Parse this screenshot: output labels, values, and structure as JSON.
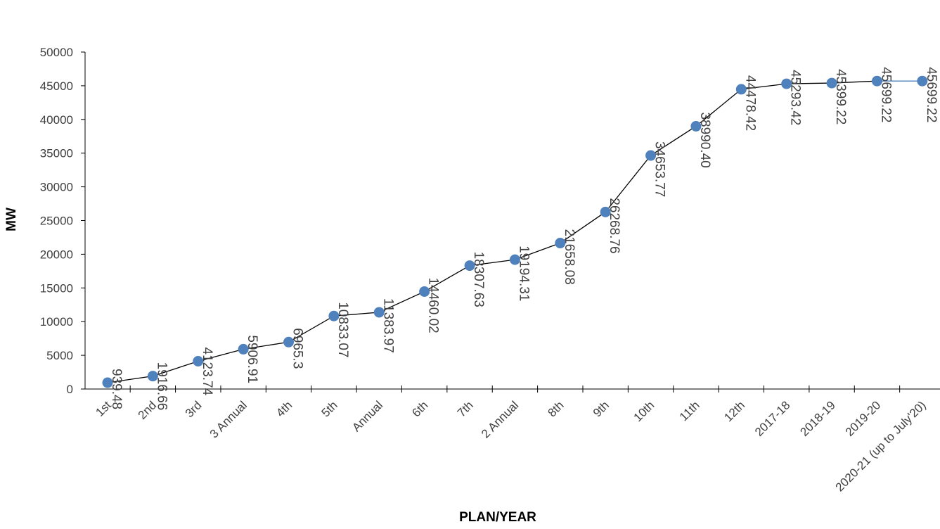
{
  "colors": {
    "marker": "#4f81bd",
    "line": "#000000",
    "last_segment": "#4f81bd",
    "axis": "#000000",
    "text": "#404040"
  },
  "chart_data": {
    "type": "line",
    "title": "",
    "xlabel": "PLAN/YEAR",
    "ylabel": "MW",
    "ylim": [
      0,
      50000
    ],
    "yticks": [
      0,
      5000,
      10000,
      15000,
      20000,
      25000,
      30000,
      35000,
      40000,
      45000,
      50000
    ],
    "grid": false,
    "legend": "none",
    "categories": [
      "1st",
      "2nd",
      "3rd",
      "3 Annual",
      "4th",
      "5th",
      "Annual",
      "6th",
      "7th",
      "2 Annual",
      "8th",
      "9th",
      "10th",
      "11th",
      "12th",
      "2017-18",
      "2018-19",
      "2019-20",
      "2020-21 (up to July'20)"
    ],
    "values": [
      939.48,
      1916.66,
      4123.74,
      5906.91,
      6965.3,
      10833.07,
      11383.97,
      14460.02,
      18307.63,
      19194.31,
      21658.08,
      26268.76,
      34653.77,
      38990.4,
      44478.42,
      45293.42,
      45399.22,
      45699.22,
      45699.22
    ],
    "data_labels": [
      "939.48",
      "1916.66",
      "4123.74",
      "5906.91",
      "6965.3",
      "10833.07",
      "11383.97",
      "14460.02",
      "18307.63",
      "19194.31",
      "21658.08",
      "26268.76",
      "34653.77",
      "38990.40",
      "44478.42",
      "45293.42",
      "45399.22",
      "45699.22",
      "45699.22"
    ]
  }
}
